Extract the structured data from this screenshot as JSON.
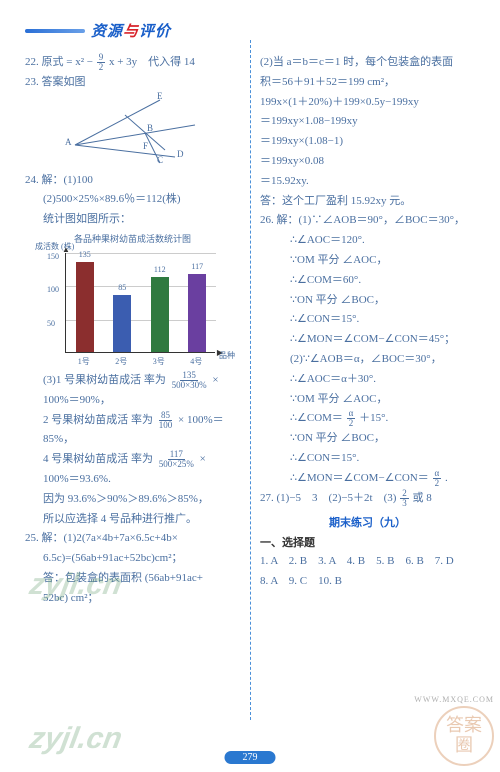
{
  "header": {
    "prefix": "资源",
    "mid": "与",
    "suffix": "评价"
  },
  "left": {
    "l22a": "22. 原式 = x² −",
    "l22b": "x + 3y　代入得 14",
    "l23": "23. 答案如图",
    "diagram_labels": {
      "E": "E",
      "A": "A",
      "B": "B",
      "D": "D",
      "F": "F",
      "C": "C"
    },
    "l24_1": "24. 解：(1)100",
    "l24_2": "(2)500×25%×89.6％＝112(株)",
    "l24_3": "统计图如图所示：",
    "chart": {
      "title": "各品种果树幼苗成活数统计图",
      "ylabel": "成活数 (株)",
      "xlabel": "品种",
      "yticks": [
        50,
        100,
        150
      ],
      "max": 150,
      "bars": [
        {
          "label": "1号",
          "value": 135,
          "color": "#8b2e2e"
        },
        {
          "label": "2号",
          "value": 85,
          "color": "#3b5db0"
        },
        {
          "label": "3号",
          "value": 112,
          "color": "#2f7a3f"
        },
        {
          "label": "4号",
          "value": 117,
          "color": "#6a3fa0"
        }
      ]
    },
    "l24_3a": "(3)1 号果树幼苗成活 率为",
    "frac_3a_num": "135",
    "frac_3a_den": "500×30%",
    "l24_3a_tail": "×",
    "l24_3b": "100%＝90%，",
    "l24_3c": "2 号果树幼苗成活 率为",
    "frac_3c_num": "85",
    "frac_3c_den": "100",
    "l24_3c_tail": "× 100%＝",
    "l24_3d": "85%，",
    "l24_3e": "4 号果树幼苗成活 率为",
    "frac_3e_num": "117",
    "frac_3e_den": "500×25%",
    "l24_3e_tail": "×",
    "l24_3f": "100%＝93.6%.",
    "l24_3g": "因为 93.6%＞90%＞89.6%＞85%，",
    "l24_3h": "所以应选择 4 号品种进行推广。",
    "l25_1": "25. 解：(1)2(7a×4b+7a×6.5c+4b×",
    "l25_2": "6.5c)=(56ab+91ac+52bc)cm²；",
    "l25_3": "答：包装盒的表面积 (56ab+91ac+",
    "l25_4": "52bc) cm²；",
    "frac_92_num": "9",
    "frac_92_den": "2"
  },
  "right": {
    "r1": "(2)当 a＝b＝c＝1 时，每个包装盒的表面",
    "r2": "积＝56＋91＋52＝199 cm²，",
    "r3": "199x×(1＋20%)＋199×0.5y−199xy",
    "r4": "＝199xy×1.08−199xy",
    "r5": "＝199xy×(1.08−1)",
    "r6": "＝199xy×0.08",
    "r7": "＝15.92xy.",
    "r8": "答：这个工厂盈利 15.92xy 元。",
    "r26_1": "26. 解：(1)∵∠AOB＝90°，∠BOC＝30°，",
    "r26_2": "∴∠AOC＝120°.",
    "r26_3": "∵OM 平分 ∠AOC，",
    "r26_4": "∴∠COM＝60°.",
    "r26_5": "∵ON 平分 ∠BOC，",
    "r26_6": "∴∠CON＝15°.",
    "r26_7": "∴∠MON＝∠COM−∠CON＝45°；",
    "r26_8": "(2)∵∠AOB＝α，∠BOC＝30°，",
    "r26_9": "∴∠AOC＝α＋30°.",
    "r26_10": "∵OM 平分 ∠AOC，",
    "r26_11a": "∴∠COM＝",
    "frac_a2_num": "α",
    "frac_a2_den": "2",
    "r26_11b": "＋15°.",
    "r26_12": "∵ON 平分 ∠BOC，",
    "r26_13": "∴∠CON＝15°.",
    "r26_14a": "∴∠MON＝∠COM−∠CON＝",
    "r26_14b": ".",
    "r27_1": "27. (1)−5　3　(2)−5＋2t　(3)",
    "frac_23_num": "2",
    "frac_23_den": "3",
    "r27_1b": "或 8",
    "section": "期末练习（九）",
    "choice_heading": "一、选择题",
    "choices1": "1. A　2. B　3. A　4. B　5. B　6. B　7. D",
    "choices2": "8. A　9. C　10. B"
  },
  "footer": {
    "page": "279"
  },
  "watermark": "zyjl.cn",
  "site": "WWW.MXQE.COM",
  "stamp_top": "答案",
  "stamp_bot": "圈"
}
